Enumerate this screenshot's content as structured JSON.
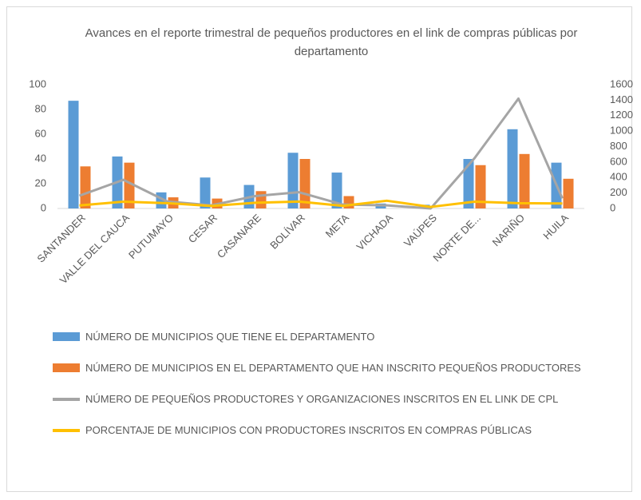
{
  "chart_data": {
    "type": "bar",
    "title": "Avances en el reporte trimestral de pequeños productores en el link de compras públicas por departamento",
    "categories": [
      "SANTANDER",
      "VALLE DEL CAUCA",
      "PUTUMAYO",
      "CESAR",
      "CASANARE",
      "BOLÍVAR",
      "META",
      "VICHADA",
      "VAÚPES",
      "NORTE DE...",
      "NARIÑO",
      "HUILA"
    ],
    "series": [
      {
        "name": "NÚMERO DE MUNICIPIOS QUE TIENE EL DEPARTAMENTO",
        "type": "bar",
        "color": "#5b9bd5",
        "values": [
          87,
          42,
          13,
          25,
          19,
          45,
          29,
          4,
          3,
          40,
          64,
          37
        ]
      },
      {
        "name": "NÚMERO DE MUNICIPIOS EN EL DEPARTAMENTO QUE HAN INSCRITO PEQUEÑOS PRODUCTORES",
        "type": "bar",
        "color": "#ed7d31",
        "values": [
          34,
          37,
          9,
          8,
          14,
          40,
          10,
          0,
          0,
          35,
          44,
          24
        ]
      },
      {
        "name": "NÚMERO DE PEQUEÑOS PRODUCTORES Y ORGANIZACIONES INSCRITOS EN EL LINK DE CPL",
        "type": "line",
        "axis": "y2",
        "color": "#a5a5a5",
        "values": [
          165,
          370,
          90,
          40,
          160,
          210,
          50,
          40,
          0,
          650,
          1420,
          130
        ]
      },
      {
        "name": "PORCENTAJE DE  MUNICIPIOS CON PRODUCTORES INSCRITOS EN COMPRAS PÚBLICAS",
        "type": "line",
        "axis": "y2",
        "color": "#ffc000",
        "values": [
          39,
          88,
          69,
          32,
          74,
          89,
          34,
          100,
          20,
          88,
          69,
          65
        ]
      }
    ],
    "ylim": [
      0,
      100
    ],
    "yticks": [
      0,
      20,
      40,
      60,
      80,
      100
    ],
    "y2lim": [
      0,
      1600
    ],
    "y2ticks": [
      0,
      200,
      400,
      600,
      800,
      1000,
      1200,
      1400,
      1600
    ],
    "legend": "bottom"
  }
}
